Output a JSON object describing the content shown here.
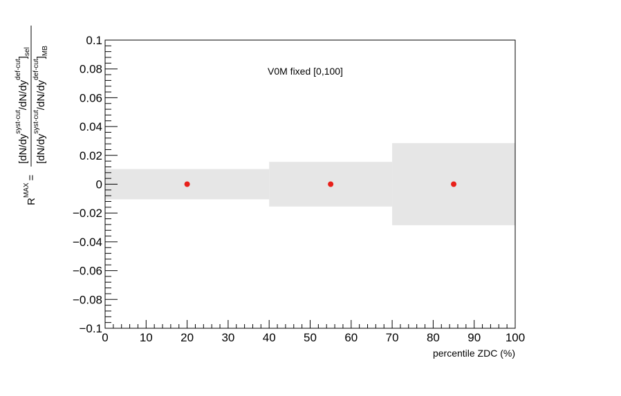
{
  "chart_data": {
    "type": "scatter",
    "title": "",
    "annotation": "V0M fixed [0,100]",
    "xlabel": "percentile ZDC (%)",
    "ylabel": {
      "lhs_main": "R",
      "lhs_sup": "MAX",
      "equals": "=",
      "num_open": "[dN/dy",
      "num_sup1": "syst-cut",
      "num_mid": "/dN/dy",
      "num_sup2": "def-cut",
      "num_close": "]",
      "num_sub": "sel",
      "den_open": "[dN/dy",
      "den_sup1": "syst-cut",
      "den_mid": "/dN/dy",
      "den_sup2": "def-cut",
      "den_close": "]",
      "den_sub": "MB"
    },
    "xlim": [
      0,
      100
    ],
    "ylim": [
      -0.1,
      0.1
    ],
    "xticks": [
      0,
      10,
      20,
      30,
      40,
      50,
      60,
      70,
      80,
      90,
      100
    ],
    "xtick_labels": [
      "0",
      "10",
      "20",
      "30",
      "40",
      "50",
      "60",
      "70",
      "80",
      "90",
      "100"
    ],
    "yticks": [
      -0.1,
      -0.08,
      -0.06,
      -0.04,
      -0.02,
      0,
      0.02,
      0.04,
      0.06,
      0.08,
      0.1
    ],
    "ytick_labels": [
      "−0.1",
      "−0.08",
      "−0.06",
      "−0.04",
      "−0.02",
      "0",
      "0.02",
      "0.04",
      "0.06",
      "0.08",
      "0.1"
    ],
    "grid": false,
    "points": [
      {
        "x": 20,
        "y": 0,
        "xlow": 0,
        "xhigh": 40,
        "syst": 0.0105
      },
      {
        "x": 55,
        "y": 0,
        "xlow": 40,
        "xhigh": 70,
        "syst": 0.0155
      },
      {
        "x": 85,
        "y": 0,
        "xlow": 70,
        "xhigh": 100,
        "syst": 0.0285
      }
    ],
    "colors": {
      "marker": "#e8201a",
      "band": "#e6e6e6",
      "axis": "#000000"
    }
  }
}
